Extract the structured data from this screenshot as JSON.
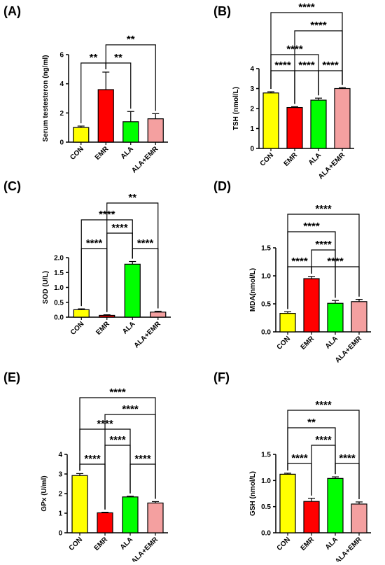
{
  "chart_data": [
    {
      "panel_label": "(A)",
      "type": "bar",
      "categories": [
        "CON",
        "EMR",
        "ALA",
        "ALA+EMR"
      ],
      "values": [
        1.0,
        3.6,
        1.4,
        1.6
      ],
      "errors": [
        0.1,
        1.2,
        0.7,
        0.35
      ],
      "colors": [
        "#ffff00",
        "#ff0000",
        "#00ff00",
        "#f4a0a0"
      ],
      "ylabel": "Serum testesteron  (ng/ml)",
      "ylim": [
        0,
        6
      ],
      "yticks": [
        0,
        2,
        4,
        6
      ],
      "yticklabels": [
        "0",
        "2",
        "4",
        "6"
      ],
      "significance": [
        {
          "from": 0,
          "to": 1,
          "label": "**"
        },
        {
          "from": 1,
          "to": 2,
          "label": "**"
        },
        {
          "from": 1,
          "to": 3,
          "label": "**"
        }
      ]
    },
    {
      "panel_label": "(B)",
      "type": "bar",
      "categories": [
        "CON",
        "EMR",
        "ALA",
        "ALA+EMR"
      ],
      "values": [
        2.78,
        2.05,
        2.42,
        3.0
      ],
      "errors": [
        0.06,
        0.04,
        0.1,
        0.05
      ],
      "colors": [
        "#ffff00",
        "#ff0000",
        "#00ff00",
        "#f4a0a0"
      ],
      "ylabel": "TSH (nmol/L)",
      "ylim": [
        0,
        4
      ],
      "yticks": [
        0,
        1,
        2,
        3,
        4
      ],
      "yticklabels": [
        "0",
        "1",
        "2",
        "3",
        "4"
      ],
      "significance": [
        {
          "from": 0,
          "to": 1,
          "label": "****"
        },
        {
          "from": 1,
          "to": 2,
          "label": "****"
        },
        {
          "from": 2,
          "to": 3,
          "label": "****"
        },
        {
          "from": 0,
          "to": 2,
          "label": "****"
        },
        {
          "from": 1,
          "to": 3,
          "label": "****"
        },
        {
          "from": 0,
          "to": 3,
          "label": "****"
        }
      ]
    },
    {
      "panel_label": "(C)",
      "type": "bar",
      "categories": [
        "CON",
        "EMR",
        "ALA",
        "ALA+EMR"
      ],
      "values": [
        0.25,
        0.06,
        1.78,
        0.17
      ],
      "errors": [
        0.03,
        0.02,
        0.09,
        0.03
      ],
      "colors": [
        "#ffff00",
        "#ff0000",
        "#00ff00",
        "#f4a0a0"
      ],
      "ylabel": "SOD (U/L)",
      "ylim": [
        0,
        2.0
      ],
      "yticks": [
        0,
        0.5,
        1.0,
        1.5,
        2.0
      ],
      "yticklabels": [
        "0.0",
        "0.5",
        "1.0",
        "1.5",
        "2.0"
      ],
      "significance": [
        {
          "from": 0,
          "to": 1,
          "label": "****"
        },
        {
          "from": 2,
          "to": 3,
          "label": "****"
        },
        {
          "from": 1,
          "to": 2,
          "label": "****"
        },
        {
          "from": 0,
          "to": 2,
          "label": "****"
        },
        {
          "from": 1,
          "to": 3,
          "label": "**"
        }
      ]
    },
    {
      "panel_label": "(D)",
      "type": "bar",
      "categories": [
        "CON",
        "EMR",
        "ALA",
        "ALA+EMR"
      ],
      "values": [
        0.33,
        0.95,
        0.51,
        0.54
      ],
      "errors": [
        0.03,
        0.04,
        0.05,
        0.04
      ],
      "colors": [
        "#ffff00",
        "#ff0000",
        "#00ff00",
        "#f4a0a0"
      ],
      "ylabel": "MDA(nmol/L)",
      "ylim": [
        0,
        1.5
      ],
      "yticks": [
        0,
        0.5,
        1.0,
        1.5
      ],
      "yticklabels": [
        "0.0",
        "0.5",
        "1.0",
        "1.5"
      ],
      "significance": [
        {
          "from": 0,
          "to": 1,
          "label": "****"
        },
        {
          "from": 1,
          "to": 3,
          "label": "****"
        },
        {
          "from": 1,
          "to": 2,
          "label": "****"
        },
        {
          "from": 0,
          "to": 2,
          "label": "****"
        },
        {
          "from": 0,
          "to": 3,
          "label": "****"
        }
      ]
    },
    {
      "panel_label": "(E)",
      "type": "bar",
      "categories": [
        "CON",
        "EMR",
        "ALA",
        "ALA+EMR"
      ],
      "values": [
        2.92,
        1.02,
        1.83,
        1.52
      ],
      "errors": [
        0.1,
        0.03,
        0.04,
        0.07
      ],
      "colors": [
        "#ffff00",
        "#ff0000",
        "#00ff00",
        "#f4a0a0"
      ],
      "ylabel": "GPx (U/ml)",
      "ylim": [
        0,
        4
      ],
      "yticks": [
        0,
        1,
        2,
        3,
        4
      ],
      "yticklabels": [
        "0",
        "1",
        "2",
        "3",
        "4"
      ],
      "significance": [
        {
          "from": 0,
          "to": 1,
          "label": "****"
        },
        {
          "from": 2,
          "to": 3,
          "label": "****"
        },
        {
          "from": 1,
          "to": 2,
          "label": "****"
        },
        {
          "from": 0,
          "to": 2,
          "label": "****"
        },
        {
          "from": 1,
          "to": 3,
          "label": "****"
        },
        {
          "from": 0,
          "to": 3,
          "label": "****"
        }
      ]
    },
    {
      "panel_label": "(F)",
      "type": "bar",
      "categories": [
        "CON",
        "EMR",
        "ALA",
        "ALA+EMR"
      ],
      "values": [
        1.12,
        0.6,
        1.04,
        0.55
      ],
      "errors": [
        0.02,
        0.06,
        0.03,
        0.04
      ],
      "colors": [
        "#ffff00",
        "#ff0000",
        "#00ff00",
        "#f4a0a0"
      ],
      "ylabel": "GSH (nmol/L)",
      "ylim": [
        0,
        1.5
      ],
      "yticks": [
        0,
        0.5,
        1.0,
        1.5
      ],
      "yticklabels": [
        "0.0",
        "0.5",
        "1.0",
        "1.5"
      ],
      "significance": [
        {
          "from": 0,
          "to": 1,
          "label": "****"
        },
        {
          "from": 2,
          "to": 3,
          "label": "****"
        },
        {
          "from": 1,
          "to": 2,
          "label": "****"
        },
        {
          "from": 0,
          "to": 2,
          "label": "**"
        },
        {
          "from": 0,
          "to": 3,
          "label": "****"
        }
      ]
    }
  ]
}
